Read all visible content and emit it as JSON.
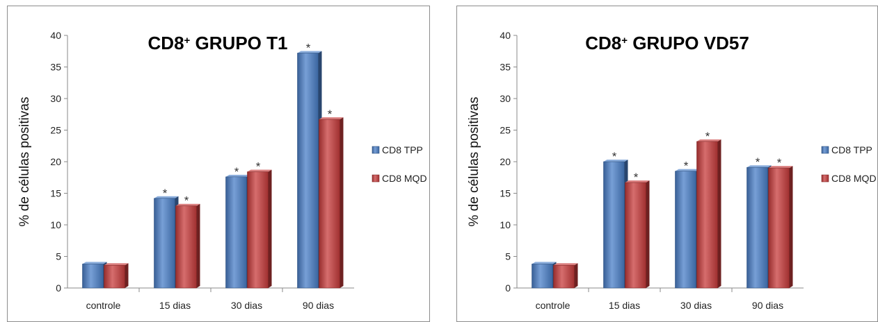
{
  "chart_data": [
    {
      "type": "bar",
      "title_main": "CD8",
      "title_sup": "+",
      "title_rest": " GRUPO T1",
      "ylabel": "% de células positivas",
      "xlabel": "",
      "ylim": [
        0,
        40
      ],
      "yticks": [
        "0",
        "5",
        "10",
        "15",
        "20",
        "25",
        "30",
        "35",
        "40"
      ],
      "categories": [
        "controle",
        "15 dias",
        "30 dias",
        "90 dias"
      ],
      "series": [
        {
          "name": "CD8 TPP",
          "color": "#4a7fc8",
          "values": [
            3.8,
            14.2,
            17.6,
            37.2
          ],
          "significant": [
            false,
            true,
            true,
            true
          ]
        },
        {
          "name": "CD8 MQD",
          "color": "#c83c3c",
          "values": [
            3.6,
            13.0,
            18.4,
            26.7
          ],
          "significant": [
            false,
            true,
            true,
            true
          ]
        }
      ],
      "significance_marker": "*",
      "legend_position": "right"
    },
    {
      "type": "bar",
      "title_main": "CD8",
      "title_sup": "+",
      "title_rest": " GRUPO VD57",
      "ylabel": "% de células positivas",
      "xlabel": "",
      "ylim": [
        0,
        40
      ],
      "yticks": [
        "0",
        "5",
        "10",
        "15",
        "20",
        "25",
        "30",
        "35",
        "40"
      ],
      "categories": [
        "controle",
        "15 dias",
        "30 dias",
        "90 dias"
      ],
      "series": [
        {
          "name": "CD8 TPP",
          "color": "#4a7fc8",
          "values": [
            3.8,
            20.0,
            18.5,
            19.1
          ],
          "significant": [
            false,
            true,
            true,
            true
          ]
        },
        {
          "name": "CD8 MQD",
          "color": "#c83c3c",
          "values": [
            3.6,
            16.7,
            23.2,
            19.0
          ],
          "significant": [
            false,
            true,
            true,
            true
          ]
        }
      ],
      "significance_marker": "*",
      "legend_position": "right"
    }
  ]
}
